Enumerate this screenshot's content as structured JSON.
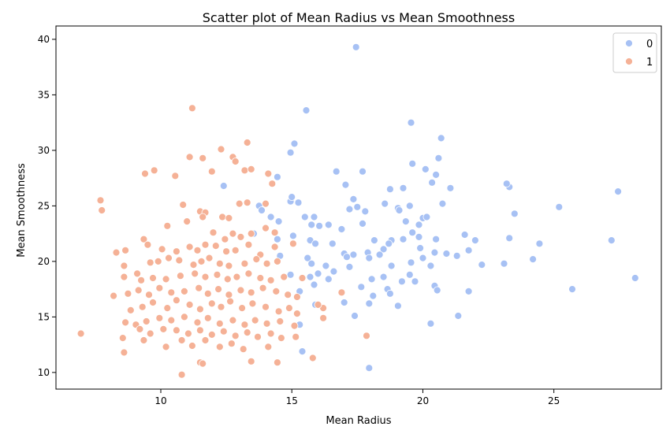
{
  "chart_data": {
    "type": "scatter",
    "title": "Scatter plot of Mean Radius vs Mean Smoothness",
    "xlabel": "Mean Radius",
    "ylabel": "Mean Smoothness",
    "xlim": [
      6.0,
      29.1
    ],
    "ylim": [
      8.5,
      41.2
    ],
    "xticks": [
      10,
      15,
      20,
      25
    ],
    "yticks": [
      10,
      15,
      20,
      25,
      30,
      35,
      40
    ],
    "grid": false,
    "legend_position": "top-right",
    "series": [
      {
        "name": "0",
        "color": "#a7c1f4",
        "points": [
          [
            17.45,
            39.3
          ],
          [
            15.55,
            33.6
          ],
          [
            19.55,
            32.5
          ],
          [
            15.1,
            30.6
          ],
          [
            14.95,
            29.8
          ],
          [
            20.7,
            31.1
          ],
          [
            20.6,
            29.3
          ],
          [
            19.6,
            28.8
          ],
          [
            16.7,
            28.1
          ],
          [
            17.7,
            28.1
          ],
          [
            20.1,
            28.3
          ],
          [
            20.5,
            27.8
          ],
          [
            14.45,
            27.6
          ],
          [
            12.4,
            26.8
          ],
          [
            17.05,
            26.9
          ],
          [
            18.75,
            26.5
          ],
          [
            20.35,
            27.1
          ],
          [
            23.3,
            26.7
          ],
          [
            23.2,
            27.0
          ],
          [
            27.45,
            26.3
          ],
          [
            13.75,
            25.0
          ],
          [
            14.95,
            25.4
          ],
          [
            15.0,
            25.8
          ],
          [
            15.25,
            25.3
          ],
          [
            17.35,
            25.6
          ],
          [
            17.5,
            24.9
          ],
          [
            18.55,
            25.2
          ],
          [
            19.05,
            24.8
          ],
          [
            19.25,
            26.6
          ],
          [
            19.5,
            25.0
          ],
          [
            20.75,
            25.2
          ],
          [
            21.05,
            26.6
          ],
          [
            25.2,
            24.9
          ],
          [
            13.85,
            24.6
          ],
          [
            14.2,
            24.0
          ],
          [
            14.5,
            23.6
          ],
          [
            15.5,
            24.0
          ],
          [
            15.85,
            24.0
          ],
          [
            16.4,
            23.3
          ],
          [
            17.2,
            24.7
          ],
          [
            17.8,
            24.5
          ],
          [
            19.1,
            24.6
          ],
          [
            19.35,
            23.6
          ],
          [
            19.85,
            23.3
          ],
          [
            20.0,
            23.9
          ],
          [
            20.15,
            24.0
          ],
          [
            23.5,
            24.3
          ],
          [
            15.75,
            23.3
          ],
          [
            16.05,
            23.2
          ],
          [
            16.9,
            22.9
          ],
          [
            17.7,
            23.4
          ],
          [
            18.15,
            21.9
          ],
          [
            18.8,
            21.9
          ],
          [
            19.6,
            22.6
          ],
          [
            19.85,
            22.2
          ],
          [
            20.5,
            22.0
          ],
          [
            21.6,
            22.4
          ],
          [
            22.0,
            21.9
          ],
          [
            23.3,
            22.1
          ],
          [
            24.45,
            21.6
          ],
          [
            27.2,
            21.9
          ],
          [
            13.55,
            22.5
          ],
          [
            14.45,
            22.0
          ],
          [
            15.05,
            22.3
          ],
          [
            15.7,
            21.9
          ],
          [
            15.9,
            21.6
          ],
          [
            16.55,
            21.6
          ],
          [
            17.0,
            20.7
          ],
          [
            17.35,
            20.6
          ],
          [
            17.9,
            20.8
          ],
          [
            18.5,
            21.1
          ],
          [
            18.7,
            21.6
          ],
          [
            19.25,
            22.0
          ],
          [
            19.9,
            21.2
          ],
          [
            20.45,
            20.8
          ],
          [
            21.3,
            20.5
          ],
          [
            21.75,
            21.0
          ],
          [
            24.2,
            20.2
          ],
          [
            14.55,
            20.5
          ],
          [
            15.6,
            20.3
          ],
          [
            15.75,
            19.8
          ],
          [
            16.3,
            19.6
          ],
          [
            17.1,
            20.4
          ],
          [
            17.95,
            20.3
          ],
          [
            18.35,
            20.6
          ],
          [
            18.8,
            19.6
          ],
          [
            19.55,
            19.9
          ],
          [
            20.0,
            20.3
          ],
          [
            20.3,
            19.6
          ],
          [
            20.9,
            20.7
          ],
          [
            22.25,
            19.7
          ],
          [
            23.1,
            19.8
          ],
          [
            28.1,
            18.5
          ],
          [
            14.95,
            18.8
          ],
          [
            15.7,
            18.6
          ],
          [
            16.0,
            18.9
          ],
          [
            16.6,
            19.1
          ],
          [
            17.2,
            19.5
          ],
          [
            18.05,
            18.4
          ],
          [
            18.5,
            18.6
          ],
          [
            19.2,
            18.2
          ],
          [
            19.5,
            18.8
          ],
          [
            19.7,
            18.2
          ],
          [
            20.45,
            17.8
          ],
          [
            21.75,
            17.3
          ],
          [
            25.7,
            17.5
          ],
          [
            15.3,
            17.3
          ],
          [
            15.85,
            17.9
          ],
          [
            16.4,
            18.4
          ],
          [
            17.65,
            17.7
          ],
          [
            18.1,
            16.9
          ],
          [
            18.65,
            17.5
          ],
          [
            18.75,
            17.1
          ],
          [
            20.55,
            17.4
          ],
          [
            15.9,
            16.1
          ],
          [
            17.0,
            16.3
          ],
          [
            17.95,
            16.2
          ],
          [
            19.05,
            16.0
          ],
          [
            17.4,
            15.1
          ],
          [
            21.35,
            15.1
          ],
          [
            15.3,
            14.3
          ],
          [
            20.3,
            14.4
          ],
          [
            15.4,
            11.9
          ],
          [
            17.95,
            10.4
          ]
        ]
      },
      {
        "name": "1",
        "color": "#f5b196",
        "points": [
          [
            11.2,
            33.8
          ],
          [
            13.3,
            30.7
          ],
          [
            12.3,
            30.1
          ],
          [
            11.1,
            29.4
          ],
          [
            11.6,
            29.3
          ],
          [
            12.75,
            29.4
          ],
          [
            12.85,
            29.0
          ],
          [
            13.2,
            28.2
          ],
          [
            13.45,
            28.3
          ],
          [
            9.4,
            27.9
          ],
          [
            9.75,
            28.2
          ],
          [
            10.55,
            27.7
          ],
          [
            11.95,
            28.1
          ],
          [
            14.1,
            27.9
          ],
          [
            14.25,
            27.0
          ],
          [
            7.7,
            25.5
          ],
          [
            7.75,
            24.6
          ],
          [
            10.85,
            25.1
          ],
          [
            11.5,
            24.5
          ],
          [
            11.7,
            24.4
          ],
          [
            12.35,
            24.0
          ],
          [
            12.6,
            23.9
          ],
          [
            13.0,
            25.2
          ],
          [
            13.3,
            25.3
          ],
          [
            14.0,
            25.2
          ],
          [
            10.25,
            23.2
          ],
          [
            11.0,
            23.6
          ],
          [
            11.6,
            24.0
          ],
          [
            12.0,
            22.6
          ],
          [
            12.45,
            22.0
          ],
          [
            12.75,
            22.5
          ],
          [
            13.05,
            22.2
          ],
          [
            13.45,
            22.5
          ],
          [
            14.0,
            23.0
          ],
          [
            14.35,
            22.6
          ],
          [
            8.3,
            20.8
          ],
          [
            8.65,
            21.0
          ],
          [
            9.35,
            22.0
          ],
          [
            9.5,
            21.5
          ],
          [
            10.05,
            21.1
          ],
          [
            10.6,
            20.9
          ],
          [
            11.1,
            21.3
          ],
          [
            11.4,
            21.0
          ],
          [
            11.7,
            21.5
          ],
          [
            12.1,
            21.4
          ],
          [
            12.5,
            20.9
          ],
          [
            12.85,
            21.0
          ],
          [
            13.35,
            21.5
          ],
          [
            13.8,
            20.6
          ],
          [
            14.35,
            21.3
          ],
          [
            15.05,
            21.6
          ],
          [
            8.6,
            19.6
          ],
          [
            9.1,
            18.9
          ],
          [
            9.6,
            19.9
          ],
          [
            9.9,
            20.0
          ],
          [
            10.3,
            20.3
          ],
          [
            10.7,
            20.1
          ],
          [
            11.25,
            19.7
          ],
          [
            11.55,
            20.0
          ],
          [
            11.85,
            20.3
          ],
          [
            12.25,
            19.8
          ],
          [
            12.6,
            19.6
          ],
          [
            13.2,
            19.8
          ],
          [
            13.65,
            20.2
          ],
          [
            14.05,
            19.8
          ],
          [
            14.45,
            20.0
          ],
          [
            8.6,
            18.6
          ],
          [
            9.25,
            18.3
          ],
          [
            9.7,
            18.5
          ],
          [
            10.2,
            18.4
          ],
          [
            10.75,
            18.7
          ],
          [
            11.3,
            18.9
          ],
          [
            11.7,
            18.6
          ],
          [
            12.15,
            18.8
          ],
          [
            12.55,
            18.4
          ],
          [
            12.9,
            18.6
          ],
          [
            13.35,
            18.9
          ],
          [
            13.8,
            18.5
          ],
          [
            14.2,
            18.3
          ],
          [
            14.7,
            18.6
          ],
          [
            15.4,
            18.5
          ],
          [
            8.2,
            16.9
          ],
          [
            8.75,
            17.1
          ],
          [
            9.15,
            17.4
          ],
          [
            9.55,
            17.0
          ],
          [
            9.95,
            17.6
          ],
          [
            10.4,
            17.2
          ],
          [
            10.9,
            17.3
          ],
          [
            11.45,
            17.6
          ],
          [
            11.8,
            17.1
          ],
          [
            12.2,
            17.5
          ],
          [
            12.6,
            17.0
          ],
          [
            13.05,
            17.4
          ],
          [
            13.45,
            17.2
          ],
          [
            13.9,
            17.6
          ],
          [
            14.4,
            17.3
          ],
          [
            14.85,
            17.0
          ],
          [
            15.2,
            16.8
          ],
          [
            16.9,
            17.2
          ],
          [
            8.85,
            15.6
          ],
          [
            9.3,
            15.9
          ],
          [
            9.7,
            16.3
          ],
          [
            10.25,
            15.8
          ],
          [
            10.6,
            16.5
          ],
          [
            11.1,
            16.1
          ],
          [
            11.5,
            15.7
          ],
          [
            11.95,
            16.2
          ],
          [
            12.3,
            15.9
          ],
          [
            12.65,
            16.4
          ],
          [
            13.1,
            15.8
          ],
          [
            13.5,
            16.2
          ],
          [
            14.0,
            15.9
          ],
          [
            14.5,
            15.5
          ],
          [
            14.9,
            15.8
          ],
          [
            15.2,
            15.3
          ],
          [
            16.2,
            15.8
          ],
          [
            8.65,
            14.5
          ],
          [
            9.05,
            14.3
          ],
          [
            9.45,
            14.6
          ],
          [
            9.95,
            14.9
          ],
          [
            10.4,
            14.7
          ],
          [
            10.9,
            15.0
          ],
          [
            11.4,
            14.5
          ],
          [
            11.8,
            14.9
          ],
          [
            12.25,
            14.4
          ],
          [
            12.75,
            14.7
          ],
          [
            13.2,
            14.3
          ],
          [
            13.6,
            14.7
          ],
          [
            14.05,
            14.4
          ],
          [
            14.55,
            14.6
          ],
          [
            15.1,
            14.2
          ],
          [
            16.2,
            14.9
          ],
          [
            9.2,
            13.9
          ],
          [
            9.6,
            13.5
          ],
          [
            10.1,
            13.9
          ],
          [
            10.6,
            13.8
          ],
          [
            11.05,
            13.5
          ],
          [
            11.5,
            13.8
          ],
          [
            11.95,
            13.4
          ],
          [
            12.4,
            13.7
          ],
          [
            12.85,
            13.3
          ],
          [
            13.3,
            13.6
          ],
          [
            13.7,
            13.2
          ],
          [
            14.2,
            13.5
          ],
          [
            14.6,
            13.1
          ],
          [
            15.15,
            13.2
          ],
          [
            6.95,
            13.5
          ],
          [
            8.55,
            13.1
          ],
          [
            9.35,
            12.9
          ],
          [
            10.2,
            12.3
          ],
          [
            10.8,
            12.9
          ],
          [
            11.2,
            12.4
          ],
          [
            11.7,
            12.9
          ],
          [
            12.25,
            12.3
          ],
          [
            12.7,
            12.6
          ],
          [
            13.15,
            12.1
          ],
          [
            14.1,
            12.3
          ],
          [
            8.6,
            11.8
          ],
          [
            11.5,
            10.9
          ],
          [
            11.6,
            10.8
          ],
          [
            13.45,
            11.0
          ],
          [
            14.45,
            10.9
          ],
          [
            15.8,
            11.3
          ],
          [
            10.8,
            9.8
          ],
          [
            17.85,
            13.3
          ],
          [
            16.0,
            16.1
          ]
        ]
      }
    ]
  }
}
